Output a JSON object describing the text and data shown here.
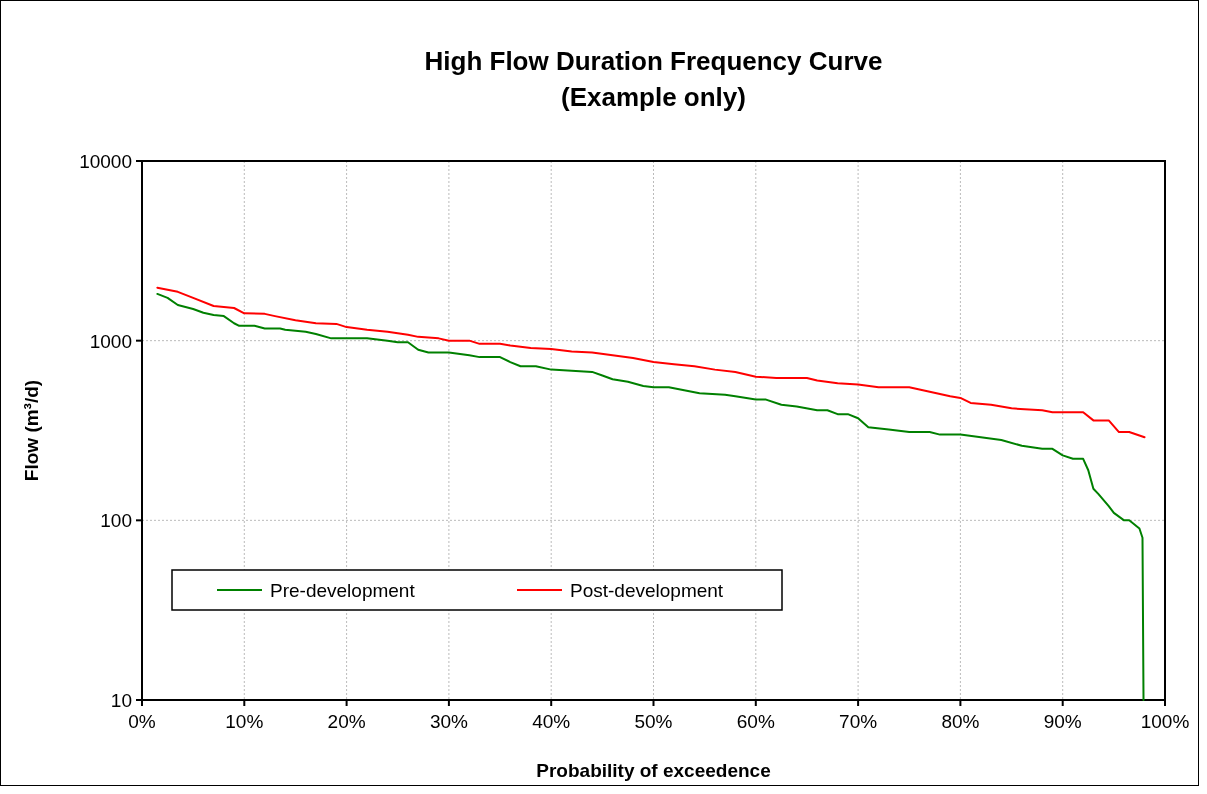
{
  "chart_data": {
    "type": "line",
    "title": "High Flow Duration Frequency Curve\n(Example only)",
    "xlabel": "Probability of exceedence",
    "ylabel": "Flow (m³/d)",
    "log": "y",
    "grid": true,
    "legend": "bottom left",
    "marker": "none",
    "line_style": "solid",
    "xlim": [
      0,
      100
    ],
    "xticks": [
      {
        "value": 0,
        "label": "0%"
      },
      {
        "value": 10,
        "label": "10%"
      },
      {
        "value": 20,
        "label": "20%"
      },
      {
        "value": 30,
        "label": "30%"
      },
      {
        "value": 40,
        "label": "40%"
      },
      {
        "value": 50,
        "label": "50%"
      },
      {
        "value": 60,
        "label": "60%"
      },
      {
        "value": 70,
        "label": "70%"
      },
      {
        "value": 80,
        "label": "80%"
      },
      {
        "value": 90,
        "label": "90%"
      },
      {
        "value": 100,
        "label": "100%"
      }
    ],
    "ylim": [
      10,
      10000
    ],
    "yticks": [
      10,
      100,
      1000,
      10000
    ],
    "series": [
      {
        "name": "Pre-development",
        "color": "#008000",
        "x": [
          1.5,
          2.5,
          3.5,
          5,
          6,
          7,
          8,
          9,
          9.5,
          11,
          12,
          13.5,
          14,
          16,
          17,
          18.5,
          21,
          22,
          24,
          25,
          26,
          27,
          28,
          30,
          32,
          33,
          35,
          36,
          37,
          38.5,
          40,
          42,
          44,
          45,
          46,
          47.5,
          49,
          50,
          51.5,
          53,
          54.5,
          57,
          58,
          60,
          61,
          62.5,
          64,
          66,
          67,
          68,
          69,
          70,
          71,
          73,
          75,
          77,
          78,
          80,
          82,
          84,
          86,
          88,
          89,
          90,
          91,
          92,
          92.5,
          93,
          93.5,
          94.5,
          95,
          96,
          96.5,
          97.5,
          97.8,
          97.9
        ],
        "values": [
          1820,
          1730,
          1580,
          1500,
          1430,
          1390,
          1370,
          1250,
          1210,
          1210,
          1170,
          1170,
          1150,
          1120,
          1090,
          1030,
          1030,
          1030,
          1000,
          980,
          980,
          890,
          860,
          860,
          830,
          810,
          810,
          760,
          720,
          720,
          690,
          680,
          670,
          640,
          610,
          590,
          560,
          550,
          550,
          530,
          510,
          500,
          490,
          470,
          470,
          440,
          430,
          410,
          410,
          390,
          390,
          370,
          330,
          320,
          310,
          310,
          300,
          300,
          290,
          280,
          260,
          250,
          250,
          230,
          220,
          220,
          190,
          150,
          140,
          120,
          110,
          100,
          100,
          90,
          80,
          10
        ]
      },
      {
        "name": "Post-development",
        "color": "#ff0000",
        "x": [
          1.5,
          3.5,
          5,
          7,
          9,
          10,
          12,
          13,
          15,
          17,
          19,
          20,
          22,
          24,
          26,
          27,
          29,
          30,
          32,
          33,
          35,
          36,
          38,
          40,
          42,
          44,
          46,
          48,
          50,
          52,
          54,
          56,
          58,
          60,
          62,
          65,
          66,
          68,
          70,
          72,
          75,
          77,
          79,
          80,
          81,
          83,
          85,
          88,
          89,
          92,
          93,
          94.5,
          95.5,
          96.5,
          98
        ],
        "values": [
          1970,
          1870,
          1730,
          1560,
          1520,
          1420,
          1410,
          1370,
          1300,
          1250,
          1240,
          1190,
          1150,
          1120,
          1080,
          1050,
          1030,
          1000,
          1000,
          960,
          960,
          940,
          910,
          900,
          870,
          860,
          830,
          800,
          760,
          740,
          720,
          690,
          670,
          630,
          620,
          620,
          600,
          580,
          570,
          550,
          550,
          520,
          490,
          480,
          450,
          440,
          420,
          410,
          400,
          400,
          360,
          360,
          310,
          310,
          290
        ]
      }
    ]
  }
}
